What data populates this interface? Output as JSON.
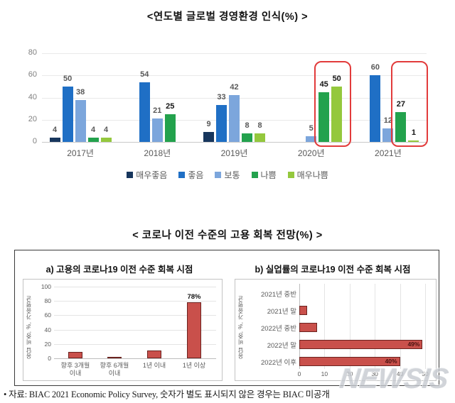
{
  "page": {
    "title1": "<연도별 글로벌 경영환경 인식(%) >",
    "title2": "< 코로나 이전 수준의 고용 회복 전망(%) >",
    "source_note": "• 자료: BIAC 2021 Economic Policy Survey, 숫자가 별도 표시되지 않은 경우는 BIAC 미공개",
    "watermark": "NEWSIS"
  },
  "chart_data": [
    {
      "id": "global-business-perception-by-year",
      "type": "bar",
      "title": "<연도별 글로벌 경영환경 인식(%) >",
      "categories": [
        "2017년",
        "2018년",
        "2019년",
        "2020년",
        "2021년"
      ],
      "series": [
        {
          "name": "매우좋음",
          "color": "#17365D",
          "values": [
            4,
            null,
            9,
            null,
            null
          ]
        },
        {
          "name": "좋음",
          "color": "#1F6FC5",
          "values": [
            50,
            54,
            33,
            null,
            60
          ]
        },
        {
          "name": "보통",
          "color": "#7CA6DC",
          "values": [
            38,
            21,
            42,
            5,
            12
          ]
        },
        {
          "name": "나쁨",
          "color": "#23A24D",
          "values": [
            4,
            25,
            8,
            45,
            27
          ]
        },
        {
          "name": "매우나쁨",
          "color": "#94C83D",
          "values": [
            4,
            null,
            8,
            50,
            1
          ]
        }
      ],
      "ylim": [
        0,
        80
      ],
      "yticks": [
        0,
        20,
        40,
        60,
        80
      ],
      "grid": true,
      "legend_position": "bottom",
      "bold_label_positions": [
        [
          1,
          3
        ],
        [
          3,
          3
        ],
        [
          3,
          4
        ],
        [
          4,
          3
        ],
        [
          4,
          4
        ]
      ],
      "highlight_boxes": [
        {
          "category": "2020년",
          "series": [
            "나쁨",
            "매우나쁨"
          ],
          "color": "#E23B3B"
        },
        {
          "category": "2021년",
          "series": [
            "나쁨",
            "매우나쁨"
          ],
          "color": "#E23B3B"
        }
      ]
    },
    {
      "id": "employment-recovery-timing",
      "type": "bar",
      "title": "a) 고용의 코로나19 이전 수준 회복 시점",
      "categories": [
        "향후 3개월\n이내",
        "향후 6개월\n이내",
        "1년 이내",
        "1년 이상"
      ],
      "values": [
        9,
        2,
        11,
        78
      ],
      "data_labels": [
        null,
        null,
        null,
        "78%"
      ],
      "ylabel": "응답 비중, %, 가중평균",
      "ylim": [
        0,
        100
      ],
      "yticks": [
        0,
        20,
        40,
        60,
        80,
        100
      ],
      "bar_color": "#C9504B",
      "bar_border_color": "#6B2320",
      "grid": true
    },
    {
      "id": "unemployment-recovery-timing",
      "type": "bar-horizontal",
      "title": "b) 실업률의 코로나19 이전 수준 회복 시점",
      "categories": [
        "2021년 중반",
        "2021년 말",
        "2022년 중반",
        "2022년 말",
        "2022년 이후"
      ],
      "values": [
        0,
        3,
        7,
        49,
        40
      ],
      "data_labels": [
        null,
        null,
        null,
        "49%",
        "40%"
      ],
      "ylabel": "응답 비중, %, 가중평균",
      "xlim": [
        0,
        50
      ],
      "xticks": [
        0,
        10,
        20,
        30,
        40,
        50
      ],
      "bar_color": "#C9504B",
      "bar_border_color": "#6B2320",
      "grid": true
    }
  ]
}
